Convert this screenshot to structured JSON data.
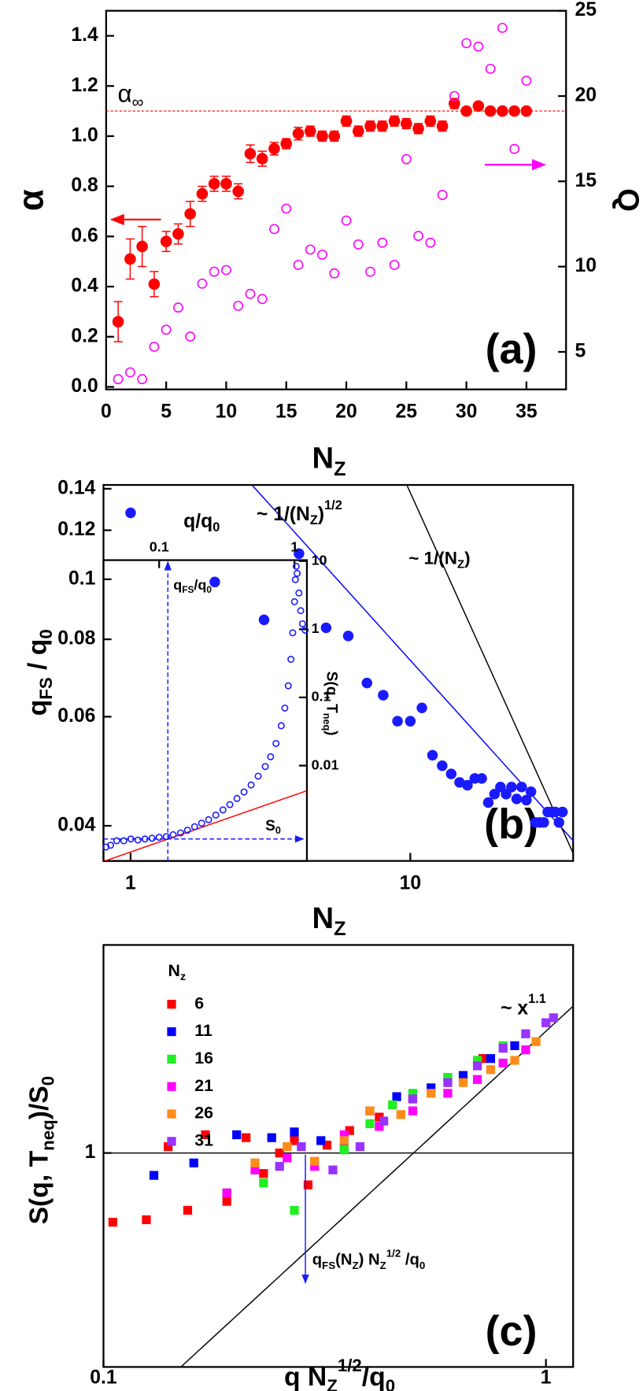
{
  "chart_data": [
    {
      "type": "scatter",
      "panel": "(a)",
      "xlog": false,
      "ylog": false,
      "xlabel": [
        {
          "t": "N"
        },
        {
          "t": "Z",
          "s": "sub"
        }
      ],
      "ylabel": [
        {
          "t": "α"
        }
      ],
      "y2label": [
        {
          "t": "Q"
        }
      ],
      "xlim": [
        0,
        38.3
      ],
      "xticks": [
        0,
        5,
        10,
        15,
        20,
        25,
        30,
        35
      ],
      "ylim": [
        -0.01,
        1.5
      ],
      "yticks": [
        {
          "value": 0,
          "label": "0.0"
        },
        0.2,
        0.4,
        0.6,
        0.8,
        {
          "value": 1,
          "label": "1.0"
        },
        1.2,
        1.4
      ],
      "y2lim": [
        2.8,
        25
      ],
      "y2ticks": [
        5,
        10,
        15,
        20,
        25
      ],
      "x": [
        1,
        2,
        3,
        4,
        5,
        6,
        7,
        8,
        9,
        10,
        11,
        12,
        13,
        14,
        15,
        16,
        17,
        18,
        19,
        20,
        21,
        22,
        23,
        24,
        25,
        26,
        27,
        28,
        29,
        30,
        31,
        32,
        33,
        34,
        35
      ],
      "series": [
        {
          "color": "#ff0000",
          "marker": "filled-circle",
          "values": [
            0.26,
            0.51,
            0.56,
            0.41,
            0.58,
            0.61,
            0.69,
            0.77,
            0.81,
            0.81,
            0.78,
            0.93,
            0.91,
            0.95,
            0.97,
            1.01,
            1.02,
            1.0,
            1.0,
            1.06,
            1.02,
            1.04,
            1.04,
            1.06,
            1.05,
            1.03,
            1.06,
            1.04,
            1.13,
            1.1,
            1.12,
            1.1,
            1.1,
            1.1,
            1.1
          ],
          "errors": [
            0.08,
            0.08,
            0.08,
            0.05,
            0.04,
            0.04,
            0.05,
            0.03,
            0.03,
            0.03,
            0.03,
            0.035,
            0.03,
            0.025,
            0.02,
            0.025,
            0.02,
            0.02,
            0.02,
            0.02,
            0.02,
            0.02,
            0.02,
            0.02,
            0.02,
            0.02,
            0.02,
            0.02,
            0.02,
            0.01,
            0.01,
            0.01,
            0.01,
            0.01,
            0.01
          ]
        },
        {
          "color": "#ff00ff",
          "marker": "open-circle",
          "axis": "y2",
          "values": [
            3.4,
            3.8,
            3.4,
            5.3,
            6.3,
            7.6,
            5.9,
            9.0,
            9.7,
            9.8,
            7.7,
            8.4,
            8.1,
            12.2,
            13.4,
            10.1,
            11.0,
            10.7,
            9.6,
            12.7,
            11.3,
            9.7,
            11.4,
            10.1,
            16.3,
            11.8,
            11.4,
            14.2,
            20.0,
            23.1,
            22.9,
            21.6,
            24.0,
            16.9,
            20.9
          ]
        }
      ],
      "reference_line": {
        "value": 1.1,
        "color": "#ff0000",
        "dash": true,
        "label": [
          {
            "t": "α"
          },
          {
            "t": "∞",
            "s": "sub"
          }
        ]
      }
    },
    {
      "type": "scatter",
      "panel": "(b)",
      "xlog": true,
      "ylog": true,
      "xlabel": [
        {
          "t": "N"
        },
        {
          "t": "Z",
          "s": "sub"
        }
      ],
      "ylabel": [
        {
          "t": "q"
        },
        {
          "t": "FS",
          "s": "sub"
        },
        {
          "t": " / q"
        },
        {
          "t": "0",
          "s": "sub"
        }
      ],
      "xlim": [
        0.8,
        38.2
      ],
      "xticks": [
        1,
        10
      ],
      "ylim": [
        0.0351,
        0.142
      ],
      "yticks": [
        0.04,
        0.06,
        0.08,
        0.1,
        0.12,
        0.14
      ],
      "x": [
        1,
        2,
        3,
        4,
        5,
        6,
        7,
        8,
        9,
        10,
        11,
        12,
        13,
        14,
        15,
        16,
        17,
        18,
        19,
        20,
        21,
        22,
        23,
        24,
        25,
        26,
        27,
        28,
        29,
        30,
        31,
        32,
        33,
        34,
        35
      ],
      "series": [
        {
          "color": "#1a1aff",
          "marker": "filled-circle",
          "values": [
            0.128,
            0.099,
            0.086,
            0.11,
            0.0835,
            0.081,
            0.068,
            0.065,
            0.059,
            0.059,
            0.062,
            0.052,
            0.05,
            0.0485,
            0.047,
            0.0465,
            0.0477,
            0.0477,
            0.0436,
            0.045,
            0.0462,
            0.045,
            0.0462,
            0.0442,
            0.0462,
            0.044,
            0.0454,
            0.0405,
            0.0405,
            0.0405,
            0.0421,
            0.0421,
            0.0421,
            0.0405,
            0.0421
          ]
        }
      ],
      "fits": [
        {
          "coef": 0.234,
          "exponent": -0.5,
          "color": "#0000ff",
          "label": [
            {
              "t": "~ 1/(N"
            },
            {
              "t": "Z",
              "s": "sub"
            },
            {
              "t": ")"
            },
            {
              "t": "1/2",
              "s": "sup"
            }
          ]
        },
        {
          "coef": 1.38,
          "exponent": -1,
          "color": "#000000",
          "label": [
            {
              "t": "~ 1/(N"
            },
            {
              "t": "Z",
              "s": "sub"
            },
            {
              "t": ")"
            }
          ]
        }
      ]
    },
    {
      "type": "scatter",
      "xlog": true,
      "ylog": true,
      "xlabel": [
        {
          "t": "q/q"
        },
        {
          "t": "0",
          "s": "sub"
        }
      ],
      "ylabel": [
        {
          "t": "S(q, T"
        },
        {
          "t": "neq",
          "s": "sub"
        },
        {
          "t": ")"
        }
      ],
      "xlim": [
        0.0388,
        1.235
      ],
      "xticks": [
        0.1,
        1
      ],
      "ylim": [
        0.0004,
        10.3
      ],
      "yticks": [
        0.01,
        0.1,
        1,
        10
      ],
      "x": [
        0.0405,
        0.0438,
        0.0486,
        0.0548,
        0.0618,
        0.0697,
        0.0786,
        0.0887,
        0.1,
        0.113,
        0.127,
        0.144,
        0.162,
        0.183,
        0.206,
        0.232,
        0.262,
        0.296,
        0.333,
        0.376,
        0.424,
        0.478,
        0.539,
        0.608,
        0.666,
        0.73,
        0.798,
        0.848,
        0.9,
        0.941,
        0.97,
        1.0,
        1.015,
        1.03,
        1.046,
        1.078,
        1.111,
        1.145,
        1.198
      ],
      "series": [
        {
          "color": "#1a1aff",
          "marker": "open-circle",
          "values": [
            0.00064,
            0.00068,
            0.00079,
            0.00079,
            0.00084,
            0.00081,
            0.00084,
            0.00086,
            0.00089,
            0.00091,
            0.00097,
            0.00103,
            0.00113,
            0.00127,
            0.00143,
            0.00161,
            0.00188,
            0.00224,
            0.00268,
            0.0033,
            0.0041,
            0.0052,
            0.007,
            0.0097,
            0.0135,
            0.0211,
            0.0384,
            0.0698,
            0.148,
            0.362,
            0.887,
            2.53,
            5.34,
            8.36,
            6.58,
            3.4,
            1.87,
            1.2,
            0.97
          ]
        }
      ],
      "fits": [
        {
          "coef": 0.0037,
          "exponent": 0.69,
          "color": "#ff0000"
        }
      ],
      "qfs_marker": {
        "value": 0.116,
        "color": "#1a1aff",
        "label": [
          {
            "t": "q"
          },
          {
            "t": "FS",
            "s": "sub"
          },
          {
            "t": "/q"
          },
          {
            "t": "0",
            "s": "sub"
          }
        ]
      },
      "s0_marker": {
        "value": 0.00084,
        "color": "#1a1aff",
        "label": [
          {
            "t": "S"
          },
          {
            "t": "0",
            "s": "sub"
          }
        ]
      }
    },
    {
      "type": "scatter",
      "panel": "(c)",
      "xlog": true,
      "ylog": true,
      "grid": true,
      "xlabel": [
        {
          "t": "q N"
        },
        {
          "t": "Z",
          "s": "sub"
        },
        {
          "t": "1/2",
          "s": "sup"
        },
        {
          "t": "/q"
        },
        {
          "t": "0",
          "s": "sub"
        }
      ],
      "ylabel": [
        {
          "t": "S(q, T"
        },
        {
          "t": "neq",
          "s": "sub"
        },
        {
          "t": ")/S"
        },
        {
          "t": "0",
          "s": "sub"
        }
      ],
      "xlim": [
        0.1,
        1.152
      ],
      "xticks": [
        0.1,
        1
      ],
      "ylim": [
        0.264,
        3.65
      ],
      "yticks": [
        1
      ],
      "legend_title": [
        {
          "t": "N"
        },
        {
          "t": "z",
          "s": "sub"
        }
      ],
      "series": [
        {
          "name": "6",
          "color": "#ff0000",
          "marker": "square",
          "x": [
            0.105,
            0.125,
            0.14,
            0.155,
            0.17,
            0.19,
            0.21,
            0.23,
            0.25,
            0.27,
            0.29,
            0.32,
            0.36,
            0.42,
            0.5,
            0.6,
            0.72
          ],
          "values": [
            0.65,
            0.66,
            1.04,
            0.7,
            1.12,
            0.74,
            1.1,
            0.88,
            1.0,
            1.08,
            0.82,
            1.05,
            1.15,
            1.25,
            1.4,
            1.6,
            1.8
          ]
        },
        {
          "name": "11",
          "color": "#0000ff",
          "marker": "square",
          "x": [
            0.13,
            0.16,
            0.2,
            0.24,
            0.27,
            0.31,
            0.35,
            0.4,
            0.46,
            0.55,
            0.65,
            0.75,
            0.85
          ],
          "values": [
            0.87,
            0.94,
            1.12,
            1.1,
            1.14,
            1.08,
            1.04,
            1.3,
            1.42,
            1.5,
            1.62,
            1.8,
            1.95
          ]
        },
        {
          "name": "16",
          "color": "#22ee22",
          "marker": "square",
          "x": [
            0.19,
            0.23,
            0.27,
            0.3,
            0.35,
            0.4,
            0.45,
            0.5,
            0.6,
            0.7,
            0.8,
            0.9
          ],
          "values": [
            0.78,
            0.83,
            0.7,
            0.95,
            1.02,
            1.2,
            1.35,
            1.45,
            1.6,
            1.78,
            1.95,
            2.1
          ]
        },
        {
          "name": "21",
          "color": "#ff00ff",
          "marker": "square",
          "x": [
            0.19,
            0.22,
            0.26,
            0.3,
            0.35,
            0.42,
            0.5,
            0.6,
            0.7,
            0.8,
            0.9
          ],
          "values": [
            0.78,
            0.9,
            0.97,
            0.92,
            1.12,
            1.18,
            1.3,
            1.45,
            1.58,
            1.75,
            1.9
          ]
        },
        {
          "name": "26",
          "color": "#ff8c1a",
          "marker": "square",
          "x": [
            0.22,
            0.26,
            0.3,
            0.35,
            0.4,
            0.47,
            0.55,
            0.65,
            0.75,
            0.85,
            0.95
          ],
          "values": [
            0.94,
            1.04,
            0.95,
            1.08,
            1.3,
            1.27,
            1.45,
            1.55,
            1.68,
            1.78,
            2.0
          ]
        },
        {
          "name": "31",
          "color": "#9933ff",
          "marker": "square",
          "x": [
            0.25,
            0.28,
            0.33,
            0.38,
            0.43,
            0.5,
            0.6,
            0.7,
            0.8,
            0.9,
            1.0,
            1.04
          ],
          "values": [
            0.92,
            1.04,
            0.9,
            1.04,
            1.22,
            1.4,
            1.55,
            1.72,
            1.92,
            2.1,
            2.25,
            2.32
          ]
        }
      ],
      "fits": [
        {
          "coef": 2.134,
          "exponent": 1.1,
          "color": "#000000",
          "label": [
            {
              "t": "~ x"
            },
            {
              "t": "1.1",
              "s": "sup"
            }
          ]
        }
      ],
      "qfs_marker": {
        "value": 0.286,
        "color": "#1a1aff",
        "label": [
          {
            "t": "q"
          },
          {
            "t": "FS",
            "s": "sub"
          },
          {
            "t": "(N"
          },
          {
            "t": "Z",
            "s": "sub"
          },
          {
            "t": ") N"
          },
          {
            "t": "Z",
            "s": "sub"
          },
          {
            "t": "1/2",
            "s": "sup"
          },
          {
            "t": " /q"
          },
          {
            "t": "0",
            "s": "sub"
          }
        ]
      }
    }
  ]
}
